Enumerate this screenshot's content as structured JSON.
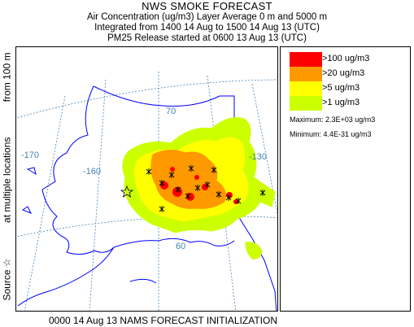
{
  "title": {
    "line1": "NWS SMOKE FORECAST",
    "line2": "Air Concentration (ug/m3) Layer Average    0 m and  5000 m",
    "line3": "Integrated from 1400 14 Aug to 1500 14 Aug 13 (UTC)",
    "line4": "PM25 Release started at 0600 13 Aug 13 (UTC)"
  },
  "side_label": {
    "part1": "Source ☆",
    "part2": "at multiple locations",
    "part3": "from   100 m"
  },
  "footer": "0000 14 Aug 13 NAMS FORECAST INITIALIZATION",
  "map": {
    "graticule_labels": {
      "lon_170": "-170",
      "lon_160": "-160",
      "lon_130": "-130",
      "lat_70": "70",
      "lat_60": "60"
    },
    "coast_color": "#0000ff",
    "graticule_color": "#4682b4"
  },
  "legend": {
    "items": [
      {
        "label": ">100 ug/m3",
        "color": "#ff0000"
      },
      {
        "label": ">20 ug/m3",
        "color": "#ff9900"
      },
      {
        "label": ">5 ug/m3",
        "color": "#ffff00"
      },
      {
        "label": ">1 ug/m3",
        "color": "#ccff00"
      }
    ],
    "maximum": "Maximum: 2.3E+03 ug/m3",
    "minimum": "Minimum: 4.4E-31 ug/m3"
  }
}
